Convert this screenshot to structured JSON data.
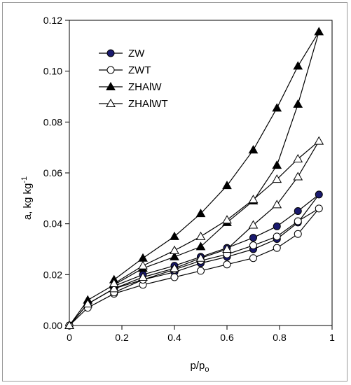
{
  "chart_data": {
    "type": "line",
    "xlabel_main": "p/p",
    "xlabel_sub": "o",
    "ylabel_main": "a,  kg kg",
    "ylabel_sup": "-1",
    "xlim": [
      0,
      1
    ],
    "ylim": [
      0,
      0.12
    ],
    "x_ticks": [
      0,
      0.2,
      0.4,
      0.6,
      0.8,
      1
    ],
    "x_tick_labels": [
      "0",
      "0.2",
      "0.4",
      "0.6",
      "0.8",
      "1"
    ],
    "y_ticks": [
      0,
      0.02,
      0.04,
      0.06,
      0.08,
      0.1,
      0.12
    ],
    "y_tick_labels": [
      "0.00",
      "0.02",
      "0.04",
      "0.06",
      "0.08",
      "0.10",
      "0.12"
    ],
    "grid": false,
    "legend_position": "top-left",
    "series": [
      {
        "name": "ZW",
        "marker": "circle",
        "fill": "#1a1a6e",
        "x": [
          0.0,
          0.07,
          0.17,
          0.28,
          0.4,
          0.5,
          0.6,
          0.7,
          0.79,
          0.87,
          0.95,
          0.87,
          0.79,
          0.7,
          0.6,
          0.5,
          0.4,
          0.28,
          0.17
        ],
        "y": [
          0.0,
          0.0085,
          0.0145,
          0.018,
          0.021,
          0.0245,
          0.027,
          0.03,
          0.034,
          0.0405,
          0.0515,
          0.045,
          0.039,
          0.0345,
          0.0305,
          0.027,
          0.0235,
          0.02,
          0.0155
        ]
      },
      {
        "name": "ZWT",
        "marker": "circle",
        "fill": "#ffffff",
        "x": [
          0.0,
          0.07,
          0.17,
          0.28,
          0.4,
          0.5,
          0.6,
          0.7,
          0.79,
          0.87,
          0.95,
          0.87,
          0.79,
          0.7,
          0.6,
          0.5,
          0.4,
          0.28,
          0.17
        ],
        "y": [
          0.0,
          0.007,
          0.0125,
          0.016,
          0.019,
          0.0215,
          0.024,
          0.0265,
          0.0305,
          0.036,
          0.046,
          0.041,
          0.035,
          0.0315,
          0.028,
          0.0255,
          0.022,
          0.018,
          0.013
        ]
      },
      {
        "name": "ZHAlW",
        "marker": "triangle",
        "fill": "#000000",
        "x": [
          0.0,
          0.07,
          0.17,
          0.28,
          0.4,
          0.5,
          0.6,
          0.7,
          0.79,
          0.87,
          0.95,
          0.87,
          0.79,
          0.7,
          0.6,
          0.5,
          0.4,
          0.28,
          0.17
        ],
        "y": [
          0.0,
          0.01,
          0.016,
          0.0225,
          0.027,
          0.031,
          0.0405,
          0.049,
          0.063,
          0.087,
          0.1155,
          0.102,
          0.0855,
          0.069,
          0.055,
          0.044,
          0.035,
          0.0265,
          0.018
        ]
      },
      {
        "name": "ZHAlWT",
        "marker": "triangle",
        "fill": "#ffffff",
        "x": [
          0.0,
          0.07,
          0.17,
          0.28,
          0.4,
          0.5,
          0.6,
          0.7,
          0.79,
          0.87,
          0.95,
          0.87,
          0.79,
          0.7,
          0.6,
          0.5,
          0.4,
          0.28,
          0.17
        ],
        "y": [
          0.0,
          0.0085,
          0.0145,
          0.019,
          0.0225,
          0.0265,
          0.03,
          0.0395,
          0.0475,
          0.0585,
          0.0725,
          0.0655,
          0.0575,
          0.0495,
          0.0415,
          0.035,
          0.0295,
          0.0235,
          0.0165
        ]
      }
    ]
  }
}
